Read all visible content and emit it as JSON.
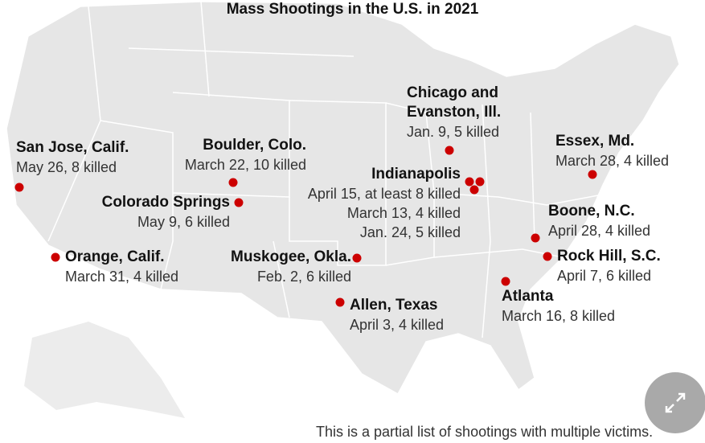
{
  "title": "Mass Shootings in the U.S. in 2021",
  "colors": {
    "dot": "#cc0000",
    "land": "#e6e6e6",
    "border": "#ffffff"
  },
  "events": [
    {
      "place": "San Jose, Calif.",
      "detail": "May 26, 8 killed"
    },
    {
      "place": "Orange, Calif.",
      "detail": "March 31, 4 killed"
    },
    {
      "place": "Boulder, Colo.",
      "detail": "March 22, 10 killed"
    },
    {
      "place": "Colorado Springs",
      "detail": "May 9, 6 killed"
    },
    {
      "place": "Muskogee, Okla.",
      "detail": "Feb. 2, 6 killed"
    },
    {
      "place": "Allen, Texas",
      "detail": "April 3, 4 killed"
    },
    {
      "place": "Chicago and",
      "place2": "Evanston, Ill.",
      "detail": "Jan. 9, 5 killed"
    },
    {
      "place": "Indianapolis",
      "details": [
        "April 15, at least 8 killed",
        "March 13, 4 killed",
        "Jan. 24, 5 killed"
      ]
    },
    {
      "place": "Essex, Md.",
      "detail": "March 28, 4 killed"
    },
    {
      "place": "Boone, N.C.",
      "detail": "April 28, 4 killed"
    },
    {
      "place": "Rock Hill, S.C.",
      "detail": "April 7, 6 killed"
    },
    {
      "place": "Atlanta",
      "detail": "March 16, 8 killed"
    }
  ],
  "note": "This is a partial list of shootings with multiple victims.",
  "expand_icon": "expand-arrows-icon"
}
